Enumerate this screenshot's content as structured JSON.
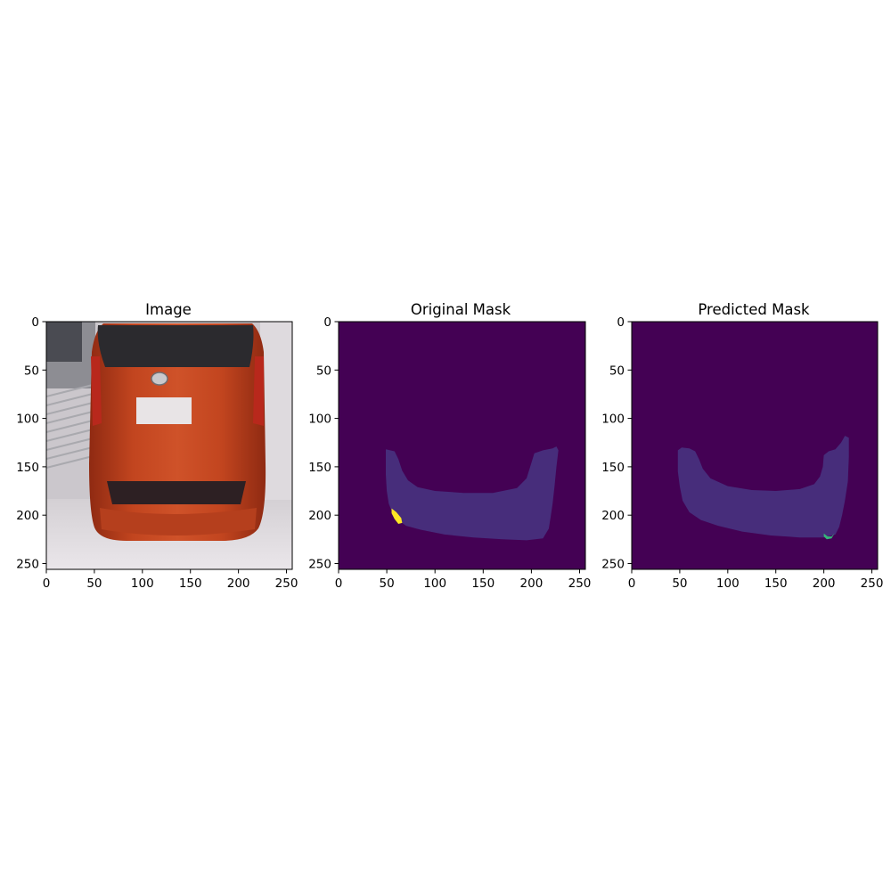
{
  "chart_data": [
    {
      "type": "image",
      "title": "Image",
      "xlim": [
        0,
        256
      ],
      "ylim": [
        256,
        0
      ],
      "xticks": [
        "0",
        "50",
        "100",
        "150",
        "200",
        "250"
      ],
      "yticks": [
        "0",
        "50",
        "100",
        "150",
        "200",
        "250"
      ],
      "image_content": "photo of the rear of an orange KIA hatchback"
    },
    {
      "type": "heatmap",
      "title": "Original Mask",
      "xlim": [
        0,
        256
      ],
      "ylim": [
        256,
        0
      ],
      "xticks": [
        "0",
        "50",
        "100",
        "150",
        "200",
        "250"
      ],
      "yticks": [
        "0",
        "50",
        "100",
        "150",
        "200",
        "250"
      ],
      "colormap": "viridis",
      "colors": {
        "background": "#440154",
        "region": "#472d7b",
        "highlight": "#fde725"
      },
      "regions": [
        {
          "class": "region",
          "polygon": [
            [
              49,
              132
            ],
            [
              58,
              134
            ],
            [
              62,
              142
            ],
            [
              66,
              154
            ],
            [
              72,
              164
            ],
            [
              82,
              171
            ],
            [
              100,
              175
            ],
            [
              130,
              177
            ],
            [
              160,
              177
            ],
            [
              185,
              172
            ],
            [
              195,
              162
            ],
            [
              200,
              146
            ],
            [
              203,
              136
            ],
            [
              212,
              133
            ],
            [
              222,
              131
            ],
            [
              226,
              129
            ],
            [
              228,
              133
            ],
            [
              226,
              150
            ],
            [
              224,
              170
            ],
            [
              222,
              188
            ],
            [
              220,
              202
            ],
            [
              218,
              214
            ],
            [
              212,
              224
            ],
            [
              195,
              226
            ],
            [
              170,
              225
            ],
            [
              140,
              223
            ],
            [
              110,
              220
            ],
            [
              85,
              215
            ],
            [
              70,
              211
            ],
            [
              62,
              205
            ],
            [
              56,
              198
            ],
            [
              52,
              188
            ],
            [
              50,
              175
            ],
            [
              49,
              158
            ],
            [
              49,
              142
            ]
          ]
        },
        {
          "class": "highlight",
          "polygon": [
            [
              55,
              193
            ],
            [
              60,
              197
            ],
            [
              65,
              203
            ],
            [
              66,
              208
            ],
            [
              62,
              209
            ],
            [
              58,
              204
            ],
            [
              55,
              198
            ]
          ]
        }
      ]
    },
    {
      "type": "heatmap",
      "title": "Predicted Mask",
      "xlim": [
        0,
        256
      ],
      "ylim": [
        256,
        0
      ],
      "xticks": [
        "0",
        "50",
        "100",
        "150",
        "200",
        "250"
      ],
      "yticks": [
        "0",
        "50",
        "100",
        "150",
        "200",
        "250"
      ],
      "colormap": "viridis",
      "colors": {
        "background": "#440154",
        "region": "#472d7b",
        "highlight": "#35b779"
      },
      "regions": [
        {
          "class": "region",
          "polygon": [
            [
              48,
              133
            ],
            [
              52,
              130
            ],
            [
              60,
              131
            ],
            [
              66,
              134
            ],
            [
              70,
              142
            ],
            [
              74,
              152
            ],
            [
              82,
              162
            ],
            [
              100,
              170
            ],
            [
              125,
              174
            ],
            [
              150,
              175
            ],
            [
              175,
              173
            ],
            [
              190,
              168
            ],
            [
              196,
              160
            ],
            [
              199,
              150
            ],
            [
              200,
              138
            ],
            [
              205,
              134
            ],
            [
              212,
              132
            ],
            [
              218,
              125
            ],
            [
              222,
              118
            ],
            [
              226,
              120
            ],
            [
              226,
              140
            ],
            [
              225,
              165
            ],
            [
              222,
              185
            ],
            [
              219,
              200
            ],
            [
              216,
              212
            ],
            [
              212,
              220
            ],
            [
              200,
              223
            ],
            [
              175,
              223
            ],
            [
              145,
              221
            ],
            [
              115,
              217
            ],
            [
              90,
              211
            ],
            [
              72,
              205
            ],
            [
              60,
              197
            ],
            [
              53,
              185
            ],
            [
              50,
              170
            ],
            [
              48,
              155
            ],
            [
              48,
              140
            ]
          ]
        },
        {
          "class": "highlight",
          "polygon": [
            [
              200,
              219
            ],
            [
              204,
              222
            ],
            [
              208,
              222
            ],
            [
              211,
              219
            ],
            [
              208,
              224
            ],
            [
              203,
              225
            ],
            [
              200,
              222
            ]
          ]
        }
      ]
    }
  ]
}
